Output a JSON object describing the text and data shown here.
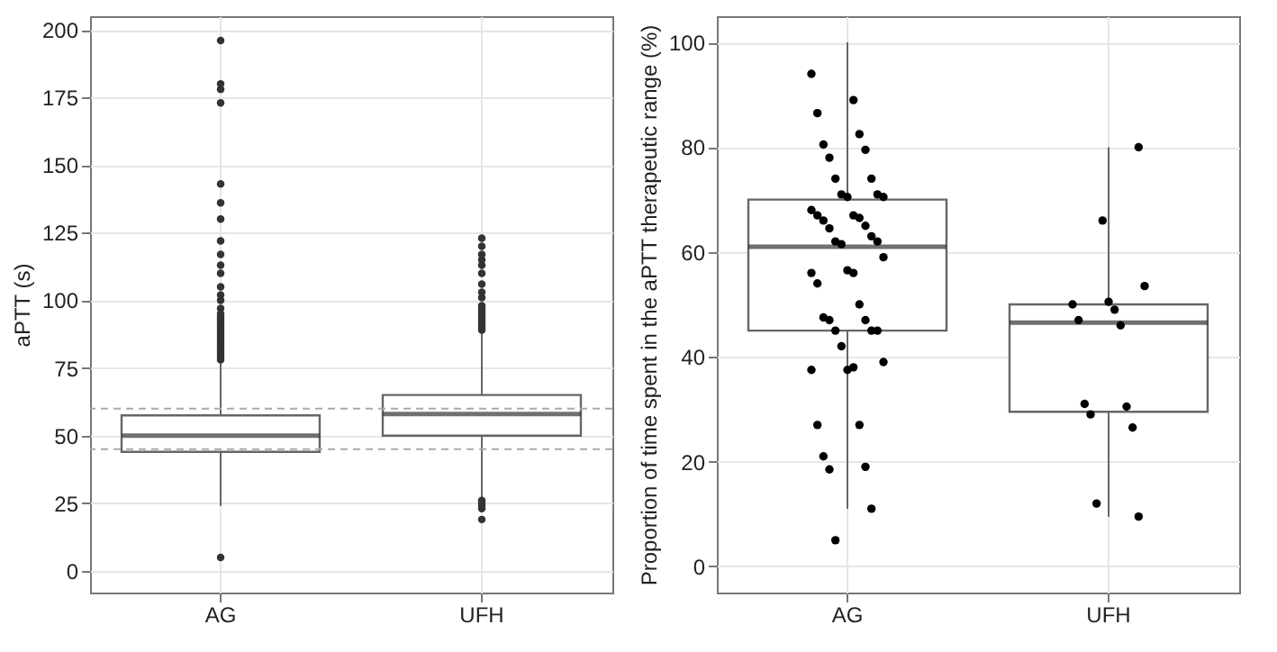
{
  "chart_data": [
    {
      "type": "box",
      "ylabel": "aPTT (s)",
      "categories": [
        "AG",
        "UFH"
      ],
      "ylim": [
        -8,
        205
      ],
      "yticks": [
        0,
        25,
        50,
        75,
        100,
        125,
        150,
        175,
        200
      ],
      "grid": true,
      "boxes": [
        {
          "low": 24,
          "q1": 44,
          "median": 50,
          "q3": 57.5,
          "high": 77.5,
          "outliers": [
            5,
            78,
            79,
            80,
            81,
            82,
            83,
            84,
            85,
            86,
            87,
            88,
            89,
            90,
            91,
            92,
            93,
            94,
            95,
            97,
            100,
            102,
            105,
            110,
            113,
            117,
            122,
            130,
            136,
            143,
            173,
            178,
            180,
            196
          ]
        },
        {
          "low": 27,
          "q1": 50,
          "median": 58,
          "q3": 65,
          "high": 88,
          "outliers": [
            19,
            23,
            24,
            25,
            26,
            89,
            90,
            91,
            92,
            93,
            94,
            95,
            96,
            97,
            98,
            101,
            103,
            106,
            110,
            113,
            115,
            117,
            120,
            123
          ]
        }
      ],
      "ref_lines": [
        {
          "axis": "y",
          "value": 45,
          "color": "#aaaaaa",
          "line_style": "dashed"
        },
        {
          "axis": "y",
          "value": 60,
          "color": "#aaaaaa",
          "line_style": "dashed"
        }
      ]
    },
    {
      "type": "box",
      "ylabel": "Proportion of time spent in the aPTT therapeutic range (%)",
      "categories": [
        "AG",
        "UFH"
      ],
      "ylim": [
        -5,
        105
      ],
      "yticks": [
        0,
        20,
        40,
        60,
        80,
        100
      ],
      "grid": true,
      "boxes": [
        {
          "low": 11,
          "q1": 45,
          "median": 61,
          "q3": 70,
          "high": 100
        },
        {
          "low": 9.5,
          "q1": 29.5,
          "median": 46.5,
          "q3": 50,
          "high": 80
        }
      ],
      "series": [
        {
          "type": "scatter",
          "color": "#000000",
          "marker": "circle",
          "x": [
            "AG",
            "AG",
            "AG",
            "AG",
            "AG",
            "AG",
            "AG",
            "AG",
            "AG",
            "AG",
            "AG",
            "AG",
            "AG",
            "AG",
            "AG",
            "AG",
            "AG",
            "AG",
            "AG",
            "AG",
            "AG",
            "AG",
            "AG",
            "AG",
            "AG",
            "AG",
            "AG",
            "AG",
            "AG",
            "AG",
            "AG",
            "AG",
            "AG",
            "AG",
            "AG",
            "AG",
            "AG",
            "AG",
            "AG",
            "AG",
            "AG",
            "AG",
            "AG",
            "AG",
            "AG",
            "AG",
            "AG",
            "AG",
            "UFH",
            "UFH",
            "UFH",
            "UFH",
            "UFH",
            "UFH",
            "UFH",
            "UFH",
            "UFH",
            "UFH",
            "UFH",
            "UFH",
            "UFH",
            "UFH"
          ],
          "values": [
            94,
            89,
            86.5,
            82.5,
            80.5,
            79.5,
            78,
            74,
            74,
            71,
            71,
            70.5,
            70.5,
            68,
            67,
            67,
            66.5,
            66,
            65,
            64.5,
            63,
            62,
            62,
            61.5,
            59,
            56.5,
            56,
            56,
            54,
            50,
            47.5,
            47,
            47,
            45,
            45,
            45,
            42,
            39,
            37.5,
            37.5,
            38,
            27,
            27,
            21,
            19,
            18.5,
            11,
            5,
            80,
            66,
            53.5,
            50.5,
            50,
            49,
            47,
            46,
            31,
            30.5,
            29,
            26.5,
            12,
            9.5
          ]
        }
      ]
    }
  ]
}
